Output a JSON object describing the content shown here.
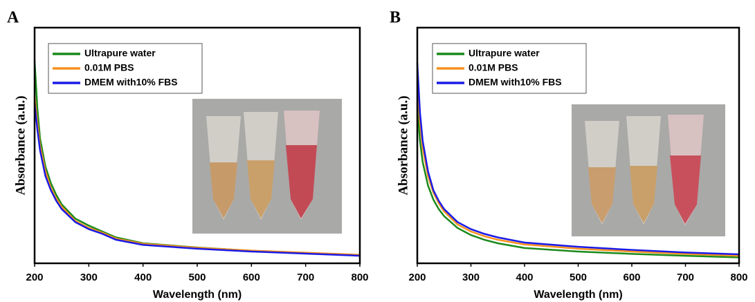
{
  "chart_data": [
    {
      "type": "line",
      "label": "A",
      "xlabel": "Wavelength (nm)",
      "ylabel": "Absorbance (a.u.)",
      "x": [
        200,
        205,
        210,
        220,
        230,
        240,
        250,
        275,
        300,
        325,
        350,
        400,
        500,
        600,
        700,
        800
      ],
      "xlim": [
        200,
        800
      ],
      "xticks": [
        200,
        300,
        400,
        500,
        600,
        700,
        800
      ],
      "ylim": [
        0,
        1
      ],
      "legend": "upper left",
      "series": [
        {
          "name": "Ultrapure water",
          "color": "#1a8a1a",
          "values": [
            0.86,
            0.66,
            0.53,
            0.41,
            0.34,
            0.29,
            0.25,
            0.19,
            0.16,
            0.135,
            0.11,
            0.085,
            0.067,
            0.053,
            0.044,
            0.035
          ]
        },
        {
          "name": "0.01M PBS",
          "color": "#f7901e",
          "values": [
            0.71,
            0.6,
            0.5,
            0.39,
            0.32,
            0.275,
            0.24,
            0.18,
            0.15,
            0.13,
            0.105,
            0.083,
            0.066,
            0.054,
            0.045,
            0.036
          ]
        },
        {
          "name": "DMEM with10% FBS",
          "color": "#1a1ae6",
          "values": [
            0.68,
            0.57,
            0.48,
            0.37,
            0.31,
            0.265,
            0.23,
            0.175,
            0.145,
            0.125,
            0.1,
            0.078,
            0.062,
            0.05,
            0.041,
            0.032
          ]
        }
      ]
    },
    {
      "type": "line",
      "label": "B",
      "xlabel": "Wavelength (nm)",
      "ylabel": "Absorbance (a.u.)",
      "x": [
        200,
        205,
        210,
        220,
        230,
        240,
        250,
        275,
        300,
        325,
        350,
        400,
        500,
        600,
        700,
        800
      ],
      "xlim": [
        200,
        800
      ],
      "xticks": [
        200,
        300,
        400,
        500,
        600,
        700,
        800
      ],
      "ylim": [
        0,
        1
      ],
      "legend": "upper left",
      "series": [
        {
          "name": "Ultrapure water",
          "color": "#1a8a1a",
          "values": [
            0.67,
            0.52,
            0.43,
            0.33,
            0.27,
            0.23,
            0.2,
            0.15,
            0.12,
            0.1,
            0.085,
            0.065,
            0.05,
            0.04,
            0.032,
            0.025
          ]
        },
        {
          "name": "0.01M PBS",
          "color": "#f7901e",
          "values": [
            0.77,
            0.6,
            0.49,
            0.37,
            0.3,
            0.255,
            0.22,
            0.165,
            0.135,
            0.115,
            0.1,
            0.08,
            0.062,
            0.05,
            0.04,
            0.032
          ]
        },
        {
          "name": "DMEM with10% FBS",
          "color": "#1a1ae6",
          "values": [
            0.85,
            0.64,
            0.52,
            0.39,
            0.31,
            0.265,
            0.23,
            0.175,
            0.145,
            0.125,
            0.11,
            0.088,
            0.07,
            0.057,
            0.046,
            0.038
          ]
        }
      ]
    }
  ]
}
